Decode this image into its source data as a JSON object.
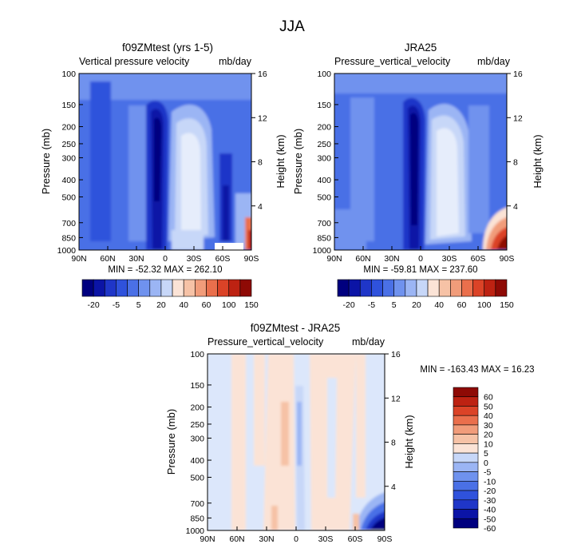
{
  "figure": {
    "title": "JJA"
  },
  "palette": {
    "negative": [
      "#00007f",
      "#0b14a6",
      "#1f36c8",
      "#2f52dc",
      "#4a70e6",
      "#6f92ee",
      "#9bb5f4",
      "#c7d7f8"
    ],
    "positive": [
      "#fbe3d6",
      "#f6c2a6",
      "#f19c7a",
      "#ea6f4c",
      "#db4327",
      "#bd2212",
      "#8e0a05"
    ]
  },
  "chart_data": [
    {
      "type": "heatmap",
      "title": "f09ZMtest (yrs 1-5)",
      "subtitle_left": "Vertical pressure velocity",
      "subtitle_right": "mb/day",
      "ylabel": "Pressure (mb)",
      "ylabel_right": "Height (km)",
      "y_scale": "log",
      "ylim": [
        1000,
        100
      ],
      "x_ticks": [
        "90N",
        "60N",
        "30N",
        "0",
        "30S",
        "60S",
        "90S"
      ],
      "y_ticks": [
        "100",
        "150",
        "200",
        "250",
        "300",
        "400",
        "500",
        "700",
        "850",
        "1000"
      ],
      "y_ticks_right": [
        "16",
        "12",
        "8",
        "4"
      ],
      "stats": "MIN = -52.32   MAX = 262.10",
      "colorbar_labels": [
        "-20",
        "-5",
        "5",
        "20",
        "40",
        "60",
        "100",
        "150"
      ],
      "field_features": "broad weak ascent across domain; strong ascent core near 5N-10N throughout troposphere; descent maximum near 15S-25S at 200-600 mb; weak ascent near 45S; strong low-level descent near 80S-90S below 700 mb"
    },
    {
      "type": "heatmap",
      "title": "JRA25",
      "subtitle_left": "Pressure_vertical_velocity",
      "subtitle_right": "mb/day",
      "ylabel": "Pressure (mb)",
      "ylabel_right": "Height (km)",
      "y_scale": "log",
      "ylim": [
        1000,
        100
      ],
      "x_ticks": [
        "90N",
        "60N",
        "30N",
        "0",
        "30S",
        "60S",
        "90S"
      ],
      "y_ticks": [
        "100",
        "150",
        "200",
        "250",
        "300",
        "400",
        "500",
        "700",
        "850",
        "1000"
      ],
      "y_ticks_right": [
        "16",
        "12",
        "8",
        "4"
      ],
      "stats": "MIN = -59.81   MAX = 237.60",
      "colorbar_labels": [
        "-20",
        "-5",
        "5",
        "20",
        "40",
        "60",
        "100",
        "150"
      ],
      "field_features": "strong ascent column near 5N-10N; descent maximum near 15S-25S; strong low-level descent near 70S-90S below 700 mb"
    },
    {
      "type": "heatmap",
      "title": "f09ZMtest - JRA25",
      "subtitle_left": "Pressure_vertical_velocity",
      "subtitle_right": "mb/day",
      "ylabel": "Pressure (mb)",
      "ylabel_right": "Height (km)",
      "y_scale": "log",
      "ylim": [
        1000,
        100
      ],
      "x_ticks": [
        "90N",
        "60N",
        "30N",
        "0",
        "30S",
        "60S",
        "90S"
      ],
      "y_ticks": [
        "100",
        "150",
        "200",
        "250",
        "300",
        "400",
        "500",
        "700",
        "850",
        "1000"
      ],
      "y_ticks_right": [
        "16",
        "12",
        "8",
        "4"
      ],
      "stats": "MIN = -163.43   MAX =  16.23",
      "colorbar_labels": [
        "60",
        "50",
        "40",
        "30",
        "20",
        "10",
        "5",
        "0",
        "-5",
        "-10",
        "-20",
        "-30",
        "-40",
        "-50",
        "-60"
      ],
      "field_features": "differences mostly within +/-10 mb/day; weak positive bands near 60N, 30N-10N, 15S-40S and 70S; negative streak near 2N; strong negative difference near 80S-90S below 700 mb"
    }
  ]
}
